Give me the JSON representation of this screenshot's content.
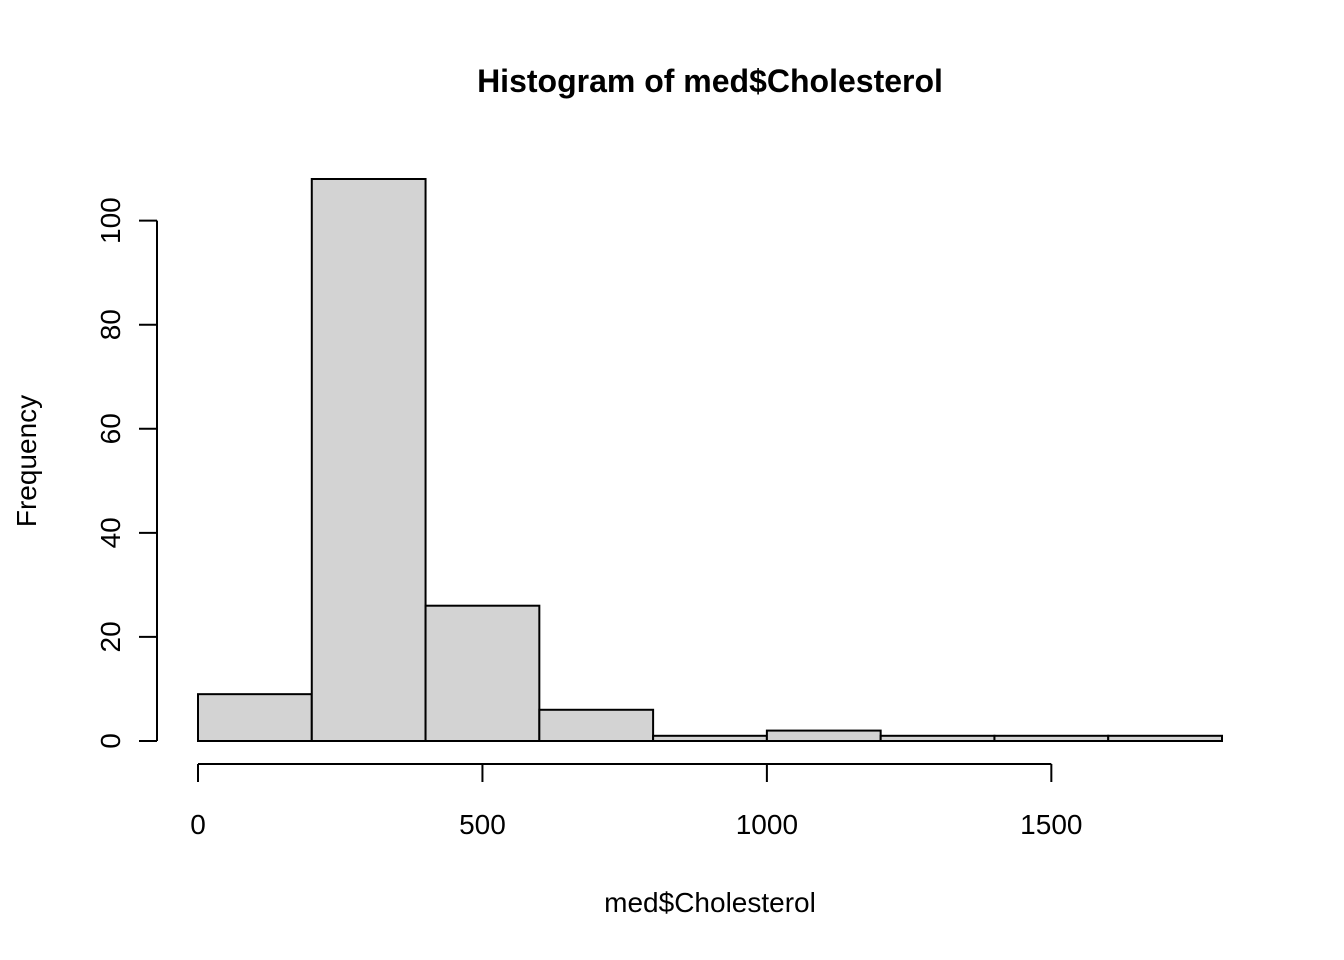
{
  "chart_data": {
    "type": "histogram",
    "title": "Histogram of med$Cholesterol",
    "xlabel": "med$Cholesterol",
    "ylabel": "Frequency",
    "bin_edges": [
      0,
      200,
      400,
      600,
      800,
      1000,
      1200,
      1400,
      1600,
      1800
    ],
    "values": [
      9,
      108,
      26,
      6,
      1,
      2,
      1,
      1,
      1
    ],
    "xlim": [
      0,
      1800
    ],
    "ylim": [
      0,
      108
    ],
    "x_ticks": [
      0,
      500,
      1000,
      1500
    ],
    "x_tick_labels": [
      "0",
      "500",
      "1000",
      "1500"
    ],
    "y_ticks": [
      0,
      20,
      40,
      60,
      80,
      100
    ],
    "y_tick_labels": [
      "0",
      "20",
      "40",
      "60",
      "80",
      "100"
    ],
    "grid": false,
    "legend": "none",
    "colors": {
      "bar_fill": "#d3d3d3",
      "bar_stroke": "#000000",
      "axis": "#000000",
      "background": "#ffffff"
    }
  }
}
